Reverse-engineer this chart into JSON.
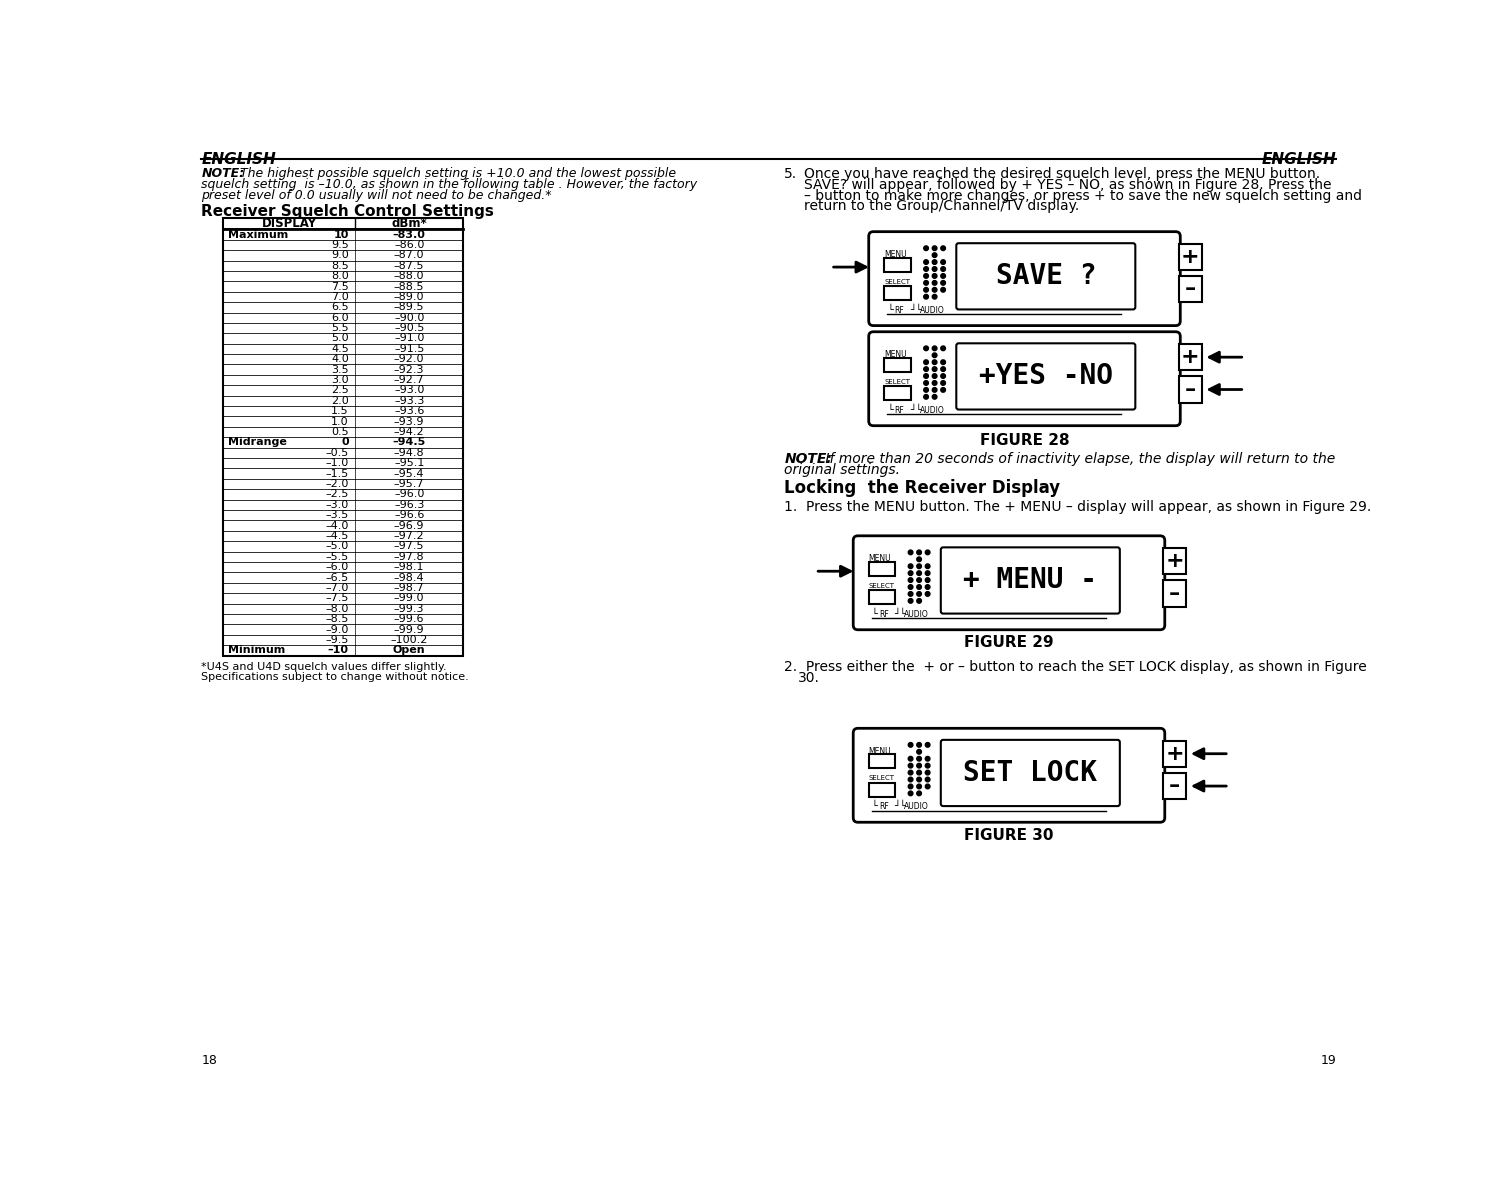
{
  "page_width": 15.0,
  "page_height": 11.99,
  "bg_color": "#ffffff",
  "header_left": "ENGLISH",
  "header_right": "ENGLISH",
  "table_col1_header": "DISPLAY",
  "table_col2_header": "dBm*",
  "table_rows": [
    [
      "Maximum",
      "10",
      "–83.0"
    ],
    [
      "",
      "9.5",
      "–86.0"
    ],
    [
      "",
      "9.0",
      "–87.0"
    ],
    [
      "",
      "8.5",
      "–87.5"
    ],
    [
      "",
      "8.0",
      "–88.0"
    ],
    [
      "",
      "7.5",
      "–88.5"
    ],
    [
      "",
      "7.0",
      "–89.0"
    ],
    [
      "",
      "6.5",
      "–89.5"
    ],
    [
      "",
      "6.0",
      "–90.0"
    ],
    [
      "",
      "5.5",
      "–90.5"
    ],
    [
      "",
      "5.0",
      "–91.0"
    ],
    [
      "",
      "4.5",
      "–91.5"
    ],
    [
      "",
      "4.0",
      "–92.0"
    ],
    [
      "",
      "3.5",
      "–92.3"
    ],
    [
      "",
      "3.0",
      "–92.7"
    ],
    [
      "",
      "2.5",
      "–93.0"
    ],
    [
      "",
      "2.0",
      "–93.3"
    ],
    [
      "",
      "1.5",
      "–93.6"
    ],
    [
      "",
      "1.0",
      "–93.9"
    ],
    [
      "",
      "0.5",
      "–94.2"
    ],
    [
      "Midrange",
      "0",
      "–94.5"
    ],
    [
      "",
      "–0.5",
      "–94.8"
    ],
    [
      "",
      "–1.0",
      "–95.1"
    ],
    [
      "",
      "–1.5",
      "–95.4"
    ],
    [
      "",
      "–2.0",
      "–95.7"
    ],
    [
      "",
      "–2.5",
      "–96.0"
    ],
    [
      "",
      "–3.0",
      "–96.3"
    ],
    [
      "",
      "–3.5",
      "–96.6"
    ],
    [
      "",
      "–4.0",
      "–96.9"
    ],
    [
      "",
      "–4.5",
      "–97.2"
    ],
    [
      "",
      "–5.0",
      "–97.5"
    ],
    [
      "",
      "–5.5",
      "–97.8"
    ],
    [
      "",
      "–6.0",
      "–98.1"
    ],
    [
      "",
      "–6.5",
      "–98.4"
    ],
    [
      "",
      "–7.0",
      "–98.7"
    ],
    [
      "",
      "–7.5",
      "–99.0"
    ],
    [
      "",
      "–8.0",
      "–99.3"
    ],
    [
      "",
      "–8.5",
      "–99.6"
    ],
    [
      "",
      "–9.0",
      "–99.9"
    ],
    [
      "",
      "–9.5",
      "–100.2"
    ],
    [
      "Minimum",
      "–10",
      "Open"
    ]
  ],
  "footnote1": "*U4S and U4D squelch values differ slightly.",
  "footnote2": "Specifications subject to change without notice.",
  "page_num_left": "18",
  "page_num_right": "19",
  "figure28_label": "FIGURE 28",
  "figure29_label": "FIGURE 29",
  "figure30_label": "FIGURE 30",
  "locking_title": "Locking  the Receiver Display"
}
